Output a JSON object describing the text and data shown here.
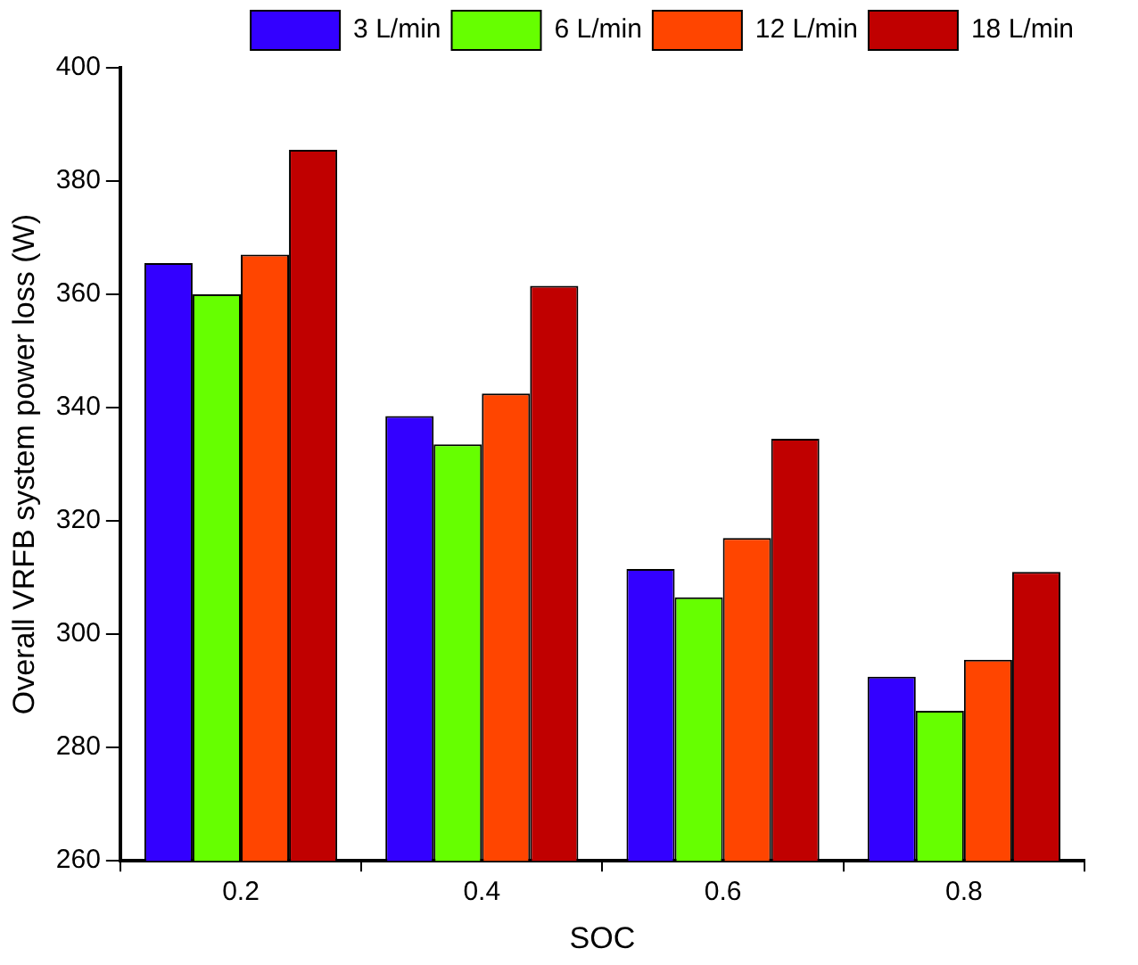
{
  "chart_data": {
    "type": "bar",
    "xlabel": "SOC",
    "ylabel": "Overall VRFB system power loss (W)",
    "categories": [
      "0.2",
      "0.4",
      "0.6",
      "0.8"
    ],
    "series": [
      {
        "name": "3 L/min",
        "color": "#3300ff",
        "values": [
          365.5,
          338.5,
          311.5,
          292.5
        ]
      },
      {
        "name": "6 L/min",
        "color": "#66ff00",
        "values": [
          360,
          333.5,
          306.5,
          286.5
        ]
      },
      {
        "name": "12 L/min",
        "color": "#ff4500",
        "values": [
          367,
          342.5,
          317,
          295.5
        ]
      },
      {
        "name": "18 L/min",
        "color": "#c00000",
        "values": [
          385.5,
          361.5,
          334.5,
          311
        ]
      }
    ],
    "ylim": [
      260,
      400
    ],
    "yticks": [
      260,
      280,
      300,
      320,
      340,
      360,
      380,
      400
    ],
    "grid": false,
    "legend": "top"
  }
}
